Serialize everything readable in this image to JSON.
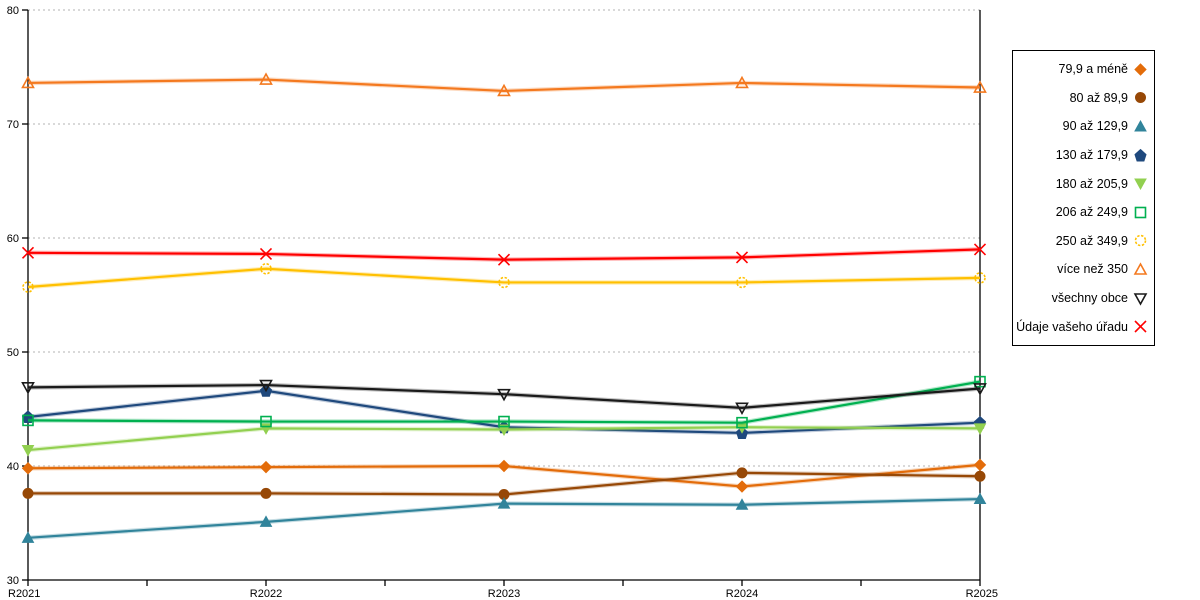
{
  "chart_data": {
    "type": "line",
    "categories": [
      "R2021",
      "R2022",
      "R2023",
      "R2024",
      "R2025"
    ],
    "xlabel": "",
    "ylabel": "",
    "ylim": [
      30,
      80
    ],
    "yticks": [
      30,
      40,
      50,
      60,
      70,
      80
    ],
    "grid": "horizontal-dashed",
    "gridline_color": "#b3b3b3",
    "axis_color": "#000000",
    "legend_position": "right",
    "series": [
      {
        "name": "79,9 a méně",
        "color": "#E36C0A",
        "marker": "diamond",
        "fill": "solid",
        "values": [
          39.8,
          39.9,
          40.0,
          38.2,
          40.1
        ]
      },
      {
        "name": "80 až 89,9",
        "color": "#974806",
        "marker": "circle",
        "fill": "solid",
        "values": [
          37.6,
          37.6,
          37.5,
          39.4,
          39.1
        ]
      },
      {
        "name": "90 až 129,9",
        "color": "#31849B",
        "marker": "triangle-up",
        "fill": "solid",
        "values": [
          33.7,
          35.1,
          36.7,
          36.6,
          37.1
        ]
      },
      {
        "name": "130 až 179,9",
        "color": "#1F497D",
        "marker": "pentagon",
        "fill": "solid",
        "values": [
          44.3,
          46.6,
          43.4,
          42.9,
          43.8
        ]
      },
      {
        "name": "180 až 205,9",
        "color": "#92D050",
        "marker": "triangle-down",
        "fill": "solid",
        "values": [
          41.4,
          43.3,
          43.2,
          43.4,
          43.3
        ]
      },
      {
        "name": "206 až 249,9",
        "color": "#00B050",
        "marker": "square",
        "fill": "open",
        "values": [
          44.0,
          43.9,
          43.9,
          43.8,
          47.4
        ]
      },
      {
        "name": "250 až 349,9",
        "color": "#FFC000",
        "marker": "circle-dashed",
        "fill": "open",
        "values": [
          55.7,
          57.3,
          56.1,
          56.1,
          56.5
        ]
      },
      {
        "name": "více než 350",
        "color": "#F4791F",
        "marker": "triangle-up",
        "fill": "open",
        "values": [
          73.6,
          73.9,
          72.9,
          73.6,
          73.2
        ]
      },
      {
        "name": "všechny obce",
        "color": "#1A1A1A",
        "marker": "triangle-down",
        "fill": "open",
        "values": [
          46.9,
          47.1,
          46.3,
          45.1,
          46.8
        ]
      },
      {
        "name": "Údaje vašeho úřadu",
        "color": "#FF0000",
        "marker": "x",
        "fill": "open",
        "values": [
          58.7,
          58.6,
          58.1,
          58.3,
          59.0
        ]
      }
    ]
  }
}
